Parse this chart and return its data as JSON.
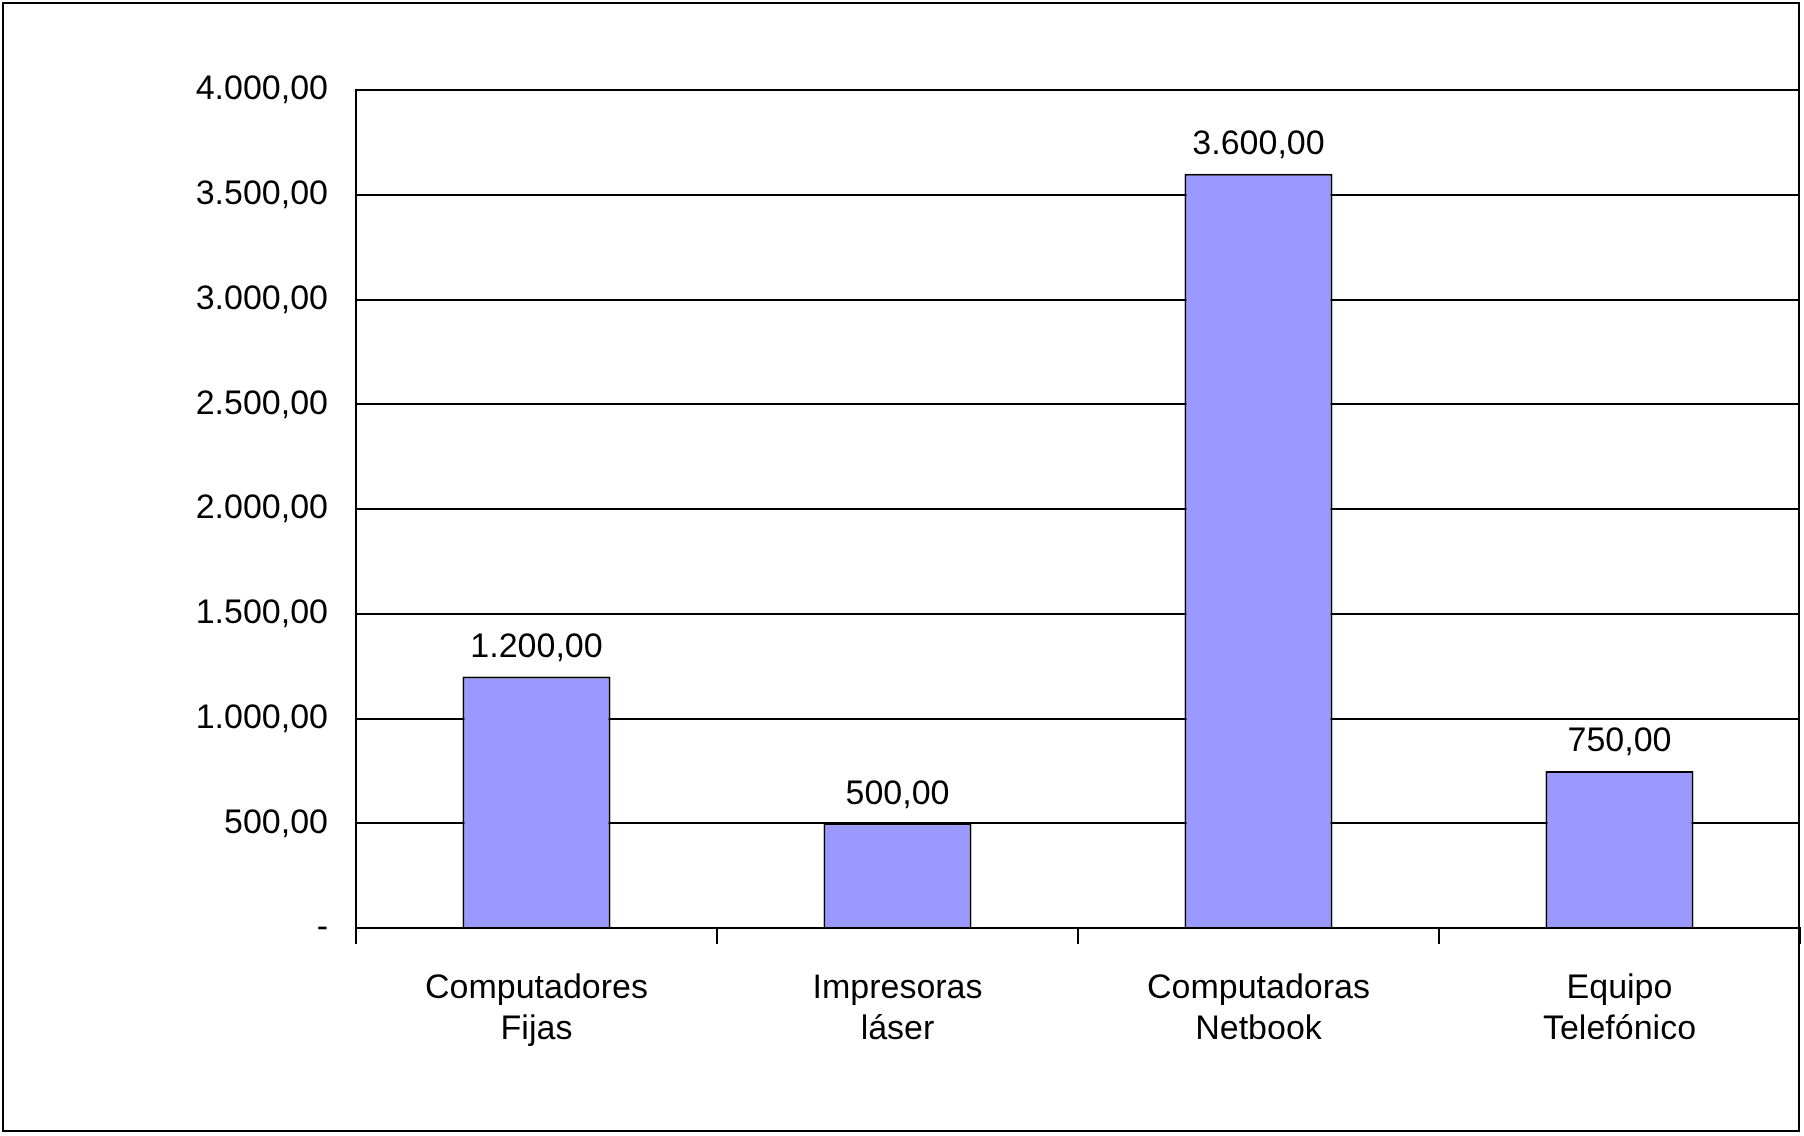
{
  "chart_data": {
    "type": "bar",
    "categories": [
      "Computadores Fijas",
      "Impresoras láser",
      "Computadoras Netbook",
      "Equipo Telefónico"
    ],
    "values": [
      1200,
      500,
      3600,
      750
    ],
    "color": "#9999ff",
    "value_labels": [
      "1.200,00",
      "500,00",
      "3.600,00",
      "750,00"
    ],
    "ylim": [
      0,
      4000
    ],
    "yticks": [
      {
        "value": 0,
        "label": "-"
      },
      {
        "value": 500,
        "label": "500,00"
      },
      {
        "value": 1000,
        "label": "1.000,00"
      },
      {
        "value": 1500,
        "label": "1.500,00"
      },
      {
        "value": 2000,
        "label": "2.000,00"
      },
      {
        "value": 2500,
        "label": "2.500,00"
      },
      {
        "value": 3000,
        "label": "3.000,00"
      },
      {
        "value": 3500,
        "label": "3.500,00"
      },
      {
        "value": 4000,
        "label": "4.000,00"
      }
    ],
    "grid": "y",
    "legend": false
  }
}
